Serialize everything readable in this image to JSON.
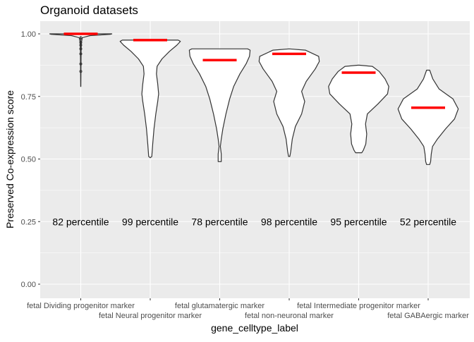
{
  "chart_data": {
    "type": "violin",
    "title": "Organoid datasets",
    "xlabel": "gene_celltype_label",
    "ylabel": "Preserved Co-expression score",
    "ylim": [
      -0.05,
      1.05
    ],
    "y_ticks": [
      "0.00",
      "0.25",
      "0.50",
      "0.75",
      "1.00"
    ],
    "y_tick_values": [
      0,
      0.25,
      0.5,
      0.75,
      1.0
    ],
    "grid": true,
    "colors": {
      "panel": "#ebebeb",
      "grid": "#ffffff",
      "median": "#ff0000",
      "violin_fill": "#ffffff",
      "violin_stroke": "#333333",
      "text": "#000000",
      "tick_text": "#4d4d4d"
    },
    "categories": [
      {
        "label": "fetal Dividing progenitor marker",
        "median": 1.0,
        "percentile_label": "82 percentile",
        "profile": [
          [
            0.79,
            0.003
          ],
          [
            0.86,
            0.006
          ],
          [
            0.93,
            0.012
          ],
          [
            0.965,
            0.02
          ],
          [
            0.985,
            0.05
          ],
          [
            0.993,
            0.3
          ],
          [
            0.998,
            0.95
          ],
          [
            1.0,
            1.0
          ],
          [
            1.0,
            0.0
          ]
        ],
        "outliers": [
          0.85,
          0.88,
          0.92,
          0.94,
          0.955,
          0.965,
          0.975,
          0.985
        ]
      },
      {
        "label": "fetal Neural progenitor marker",
        "median": 0.975,
        "percentile_label": "99 percentile",
        "profile": [
          [
            0.505,
            0.0
          ],
          [
            0.51,
            0.05
          ],
          [
            0.56,
            0.08
          ],
          [
            0.62,
            0.12
          ],
          [
            0.68,
            0.18
          ],
          [
            0.73,
            0.24
          ],
          [
            0.76,
            0.27
          ],
          [
            0.8,
            0.24
          ],
          [
            0.84,
            0.2
          ],
          [
            0.87,
            0.22
          ],
          [
            0.9,
            0.38
          ],
          [
            0.93,
            0.62
          ],
          [
            0.955,
            0.86
          ],
          [
            0.97,
            0.97
          ],
          [
            0.975,
            0.9
          ],
          [
            0.975,
            0.0
          ]
        ],
        "outliers": []
      },
      {
        "label": "fetal glutamatergic marker",
        "median": 0.895,
        "percentile_label": "78 percentile",
        "profile": [
          [
            0.49,
            0.05
          ],
          [
            0.52,
            0.05
          ],
          [
            0.55,
            0.02
          ],
          [
            0.58,
            0.05
          ],
          [
            0.62,
            0.1
          ],
          [
            0.68,
            0.2
          ],
          [
            0.74,
            0.32
          ],
          [
            0.79,
            0.45
          ],
          [
            0.84,
            0.65
          ],
          [
            0.88,
            0.85
          ],
          [
            0.91,
            0.96
          ],
          [
            0.935,
            0.98
          ],
          [
            0.94,
            0.9
          ],
          [
            0.94,
            0.0
          ]
        ],
        "outliers": []
      },
      {
        "label": "fetal non-neuronal marker",
        "median": 0.92,
        "percentile_label": "98 percentile",
        "profile": [
          [
            0.51,
            0.02
          ],
          [
            0.53,
            0.05
          ],
          [
            0.58,
            0.1
          ],
          [
            0.63,
            0.2
          ],
          [
            0.68,
            0.4
          ],
          [
            0.73,
            0.5
          ],
          [
            0.77,
            0.4
          ],
          [
            0.81,
            0.55
          ],
          [
            0.86,
            0.84
          ],
          [
            0.89,
            0.97
          ],
          [
            0.91,
            0.95
          ],
          [
            0.935,
            0.52
          ],
          [
            0.94,
            0.0
          ]
        ],
        "outliers": []
      },
      {
        "label": "fetal Intermediate progenitor marker",
        "median": 0.845,
        "percentile_label": "95 percentile",
        "profile": [
          [
            0.525,
            0.1
          ],
          [
            0.535,
            0.15
          ],
          [
            0.56,
            0.23
          ],
          [
            0.6,
            0.26
          ],
          [
            0.64,
            0.22
          ],
          [
            0.68,
            0.28
          ],
          [
            0.72,
            0.62
          ],
          [
            0.76,
            0.93
          ],
          [
            0.79,
            0.97
          ],
          [
            0.82,
            0.85
          ],
          [
            0.85,
            0.66
          ],
          [
            0.87,
            0.44
          ],
          [
            0.875,
            0.0
          ]
        ],
        "outliers": []
      },
      {
        "label": "fetal GABAergic marker",
        "median": 0.705,
        "percentile_label": "52 percentile",
        "profile": [
          [
            0.478,
            0.05
          ],
          [
            0.49,
            0.08
          ],
          [
            0.52,
            0.1
          ],
          [
            0.55,
            0.14
          ],
          [
            0.58,
            0.3
          ],
          [
            0.62,
            0.56
          ],
          [
            0.66,
            0.85
          ],
          [
            0.7,
            0.97
          ],
          [
            0.74,
            0.8
          ],
          [
            0.78,
            0.35
          ],
          [
            0.82,
            0.15
          ],
          [
            0.855,
            0.05
          ],
          [
            0.855,
            0.0
          ]
        ],
        "outliers": []
      }
    ],
    "annotation_y": 0.25
  }
}
